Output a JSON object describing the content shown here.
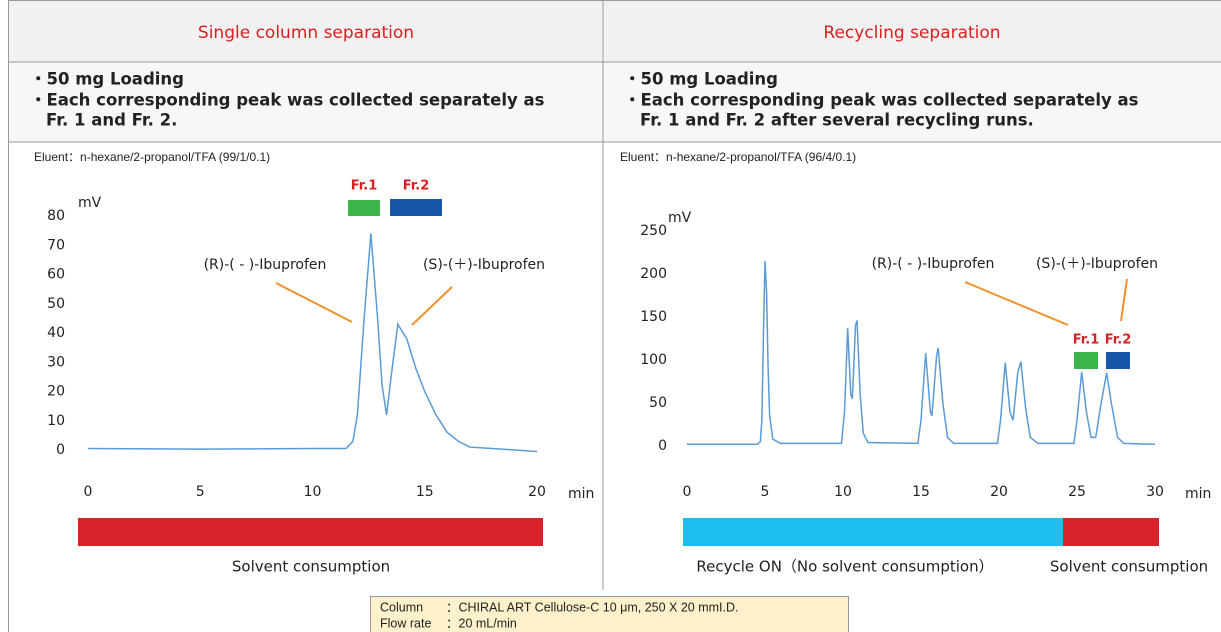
{
  "header": {
    "left": "Single column separation",
    "right": "Recycling separation"
  },
  "notes": {
    "left": [
      "・50 mg Loading",
      "・Each corresponding peak was collected separately as",
      "Fr. 1 and Fr. 2."
    ],
    "right": [
      "・50 mg Loading",
      "・Each corresponding peak was collected separately as",
      "Fr. 1 and Fr. 2 after several recycling runs."
    ]
  },
  "chart_data": [
    {
      "type": "line",
      "eluent": "Eluent：n-hexane/2-propanol/TFA (99/1/0.1)",
      "y_label": "mV",
      "x_label": "min",
      "x": [
        0,
        5,
        10,
        11.5,
        11.8,
        12.0,
        12.3,
        12.6,
        12.9,
        13.1,
        13.3,
        13.5,
        13.8,
        14.2,
        14.6,
        15.0,
        15.5,
        16.0,
        16.5,
        17,
        18,
        19,
        20
      ],
      "series": [
        {
          "color": "#5b9bd5",
          "values": [
            0.5,
            0.3,
            0.5,
            0.5,
            3,
            12,
            45,
            74,
            45,
            22,
            12,
            25,
            43,
            38,
            28,
            20,
            12,
            6,
            3,
            1,
            0.5,
            0,
            -0.5
          ]
        }
      ],
      "xlim": [
        0,
        20
      ],
      "xticks": [
        0,
        5,
        10,
        15,
        20
      ],
      "ylim": [
        0,
        80
      ],
      "yticks": [
        0,
        10,
        20,
        30,
        40,
        50,
        60,
        70,
        80
      ],
      "annotations": [
        "(R)-( - )-Ibuprofen",
        "(S)-(＋)-Ibuprofen"
      ],
      "fractions": [
        {
          "label": "Fr.1",
          "color": "#3cb44b"
        },
        {
          "label": "Fr.2",
          "color": "#1a56a8"
        }
      ]
    },
    {
      "type": "line",
      "eluent": "Eluent：n-hexane/2-propanol/TFA (96/4/0.1)",
      "y_label": "mV",
      "x_label": "min",
      "x": [
        0,
        4.5,
        4.7,
        4.8,
        4.9,
        5.0,
        5.1,
        5.2,
        5.3,
        5.5,
        6,
        9.9,
        10.1,
        10.3,
        10.5,
        10.6,
        10.8,
        10.9,
        11.1,
        11.3,
        11.6,
        14.8,
        15.0,
        15.3,
        15.6,
        15.7,
        16.0,
        16.1,
        16.4,
        16.7,
        17.1,
        19.9,
        20.1,
        20.4,
        20.7,
        20.9,
        21.2,
        21.4,
        21.7,
        22.0,
        22.5,
        24.8,
        25.0,
        25.3,
        25.6,
        25.9,
        26.2,
        26.5,
        26.9,
        27.2,
        27.6,
        28,
        30
      ],
      "series": [
        {
          "color": "#5b9bd5",
          "values": [
            2,
            2,
            5,
            30,
            130,
            215,
            180,
            90,
            35,
            8,
            3,
            3,
            40,
            137,
            60,
            55,
            140,
            146,
            60,
            15,
            4,
            3,
            30,
            108,
            40,
            35,
            105,
            114,
            50,
            10,
            3,
            3,
            30,
            97,
            40,
            30,
            85,
            98,
            45,
            10,
            3,
            3,
            30,
            86,
            40,
            10,
            10,
            45,
            85,
            50,
            10,
            3,
            2
          ]
        }
      ],
      "xlim": [
        0,
        30
      ],
      "xticks": [
        0,
        5,
        10,
        15,
        20,
        25,
        30
      ],
      "ylim": [
        0,
        250
      ],
      "yticks": [
        0,
        50,
        100,
        150,
        200,
        250
      ],
      "annotations": [
        "(R)-( - )-Ibuprofen",
        "(S)-(＋)-Ibuprofen"
      ],
      "fractions": [
        {
          "label": "Fr.1",
          "color": "#3cb44b"
        },
        {
          "label": "Fr.2",
          "color": "#1a56a8"
        }
      ]
    }
  ],
  "consumption": {
    "left": [
      "Solvent consumption"
    ],
    "right": [
      "Recycle ON（No solvent consumption）",
      "Solvent consumption"
    ]
  },
  "conditions": [
    [
      "Column",
      "：CHIRAL ART Cellulose-C 10 μm, 250 X 20 mmI.D."
    ],
    [
      "Flow rate",
      "：20 mL/min"
    ]
  ]
}
